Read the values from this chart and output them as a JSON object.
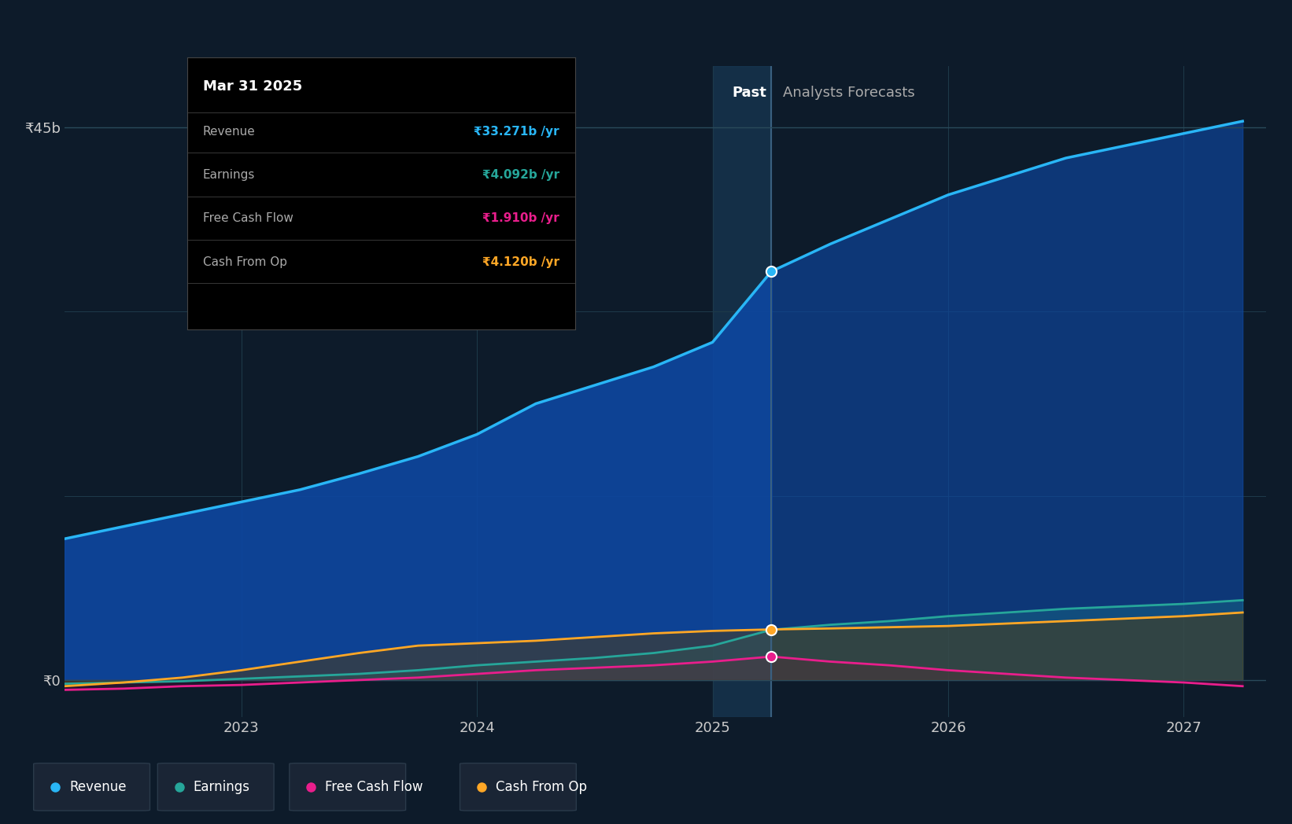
{
  "bg_color": "#0d1b2a",
  "plot_bg_color": "#0d1b2a",
  "grid_color": "#1e3a4a",
  "text_color": "#cccccc",
  "title_color": "#ffffff",
  "ylim": [
    -2,
    50
  ],
  "ytick_labels": [
    "₹0",
    "₹45b"
  ],
  "ytick_values": [
    0,
    45
  ],
  "xlabel_color": "#aaaaaa",
  "divider_x": 2025.25,
  "past_label": "Past",
  "future_label": "Analysts Forecasts",
  "revenue_color": "#29b6f6",
  "earnings_color": "#26a69a",
  "fcf_color": "#e91e8c",
  "cashop_color": "#ffa726",
  "revenue_fill_color": "#0d47a1",
  "revenue_x": [
    2022.25,
    2022.5,
    2022.75,
    2023.0,
    2023.25,
    2023.5,
    2023.75,
    2024.0,
    2024.25,
    2024.5,
    2024.75,
    2025.0,
    2025.25,
    2025.5,
    2025.75,
    2026.0,
    2026.25,
    2026.5,
    2026.75,
    2027.0,
    2027.25
  ],
  "revenue_y": [
    11.5,
    12.5,
    13.5,
    14.5,
    15.5,
    16.8,
    18.2,
    20.0,
    22.5,
    24.0,
    25.5,
    27.5,
    33.271,
    35.5,
    37.5,
    39.5,
    41.0,
    42.5,
    43.5,
    44.5,
    45.5
  ],
  "earnings_x": [
    2022.25,
    2022.5,
    2022.75,
    2023.0,
    2023.25,
    2023.5,
    2023.75,
    2024.0,
    2024.25,
    2024.5,
    2024.75,
    2025.0,
    2025.25,
    2025.5,
    2025.75,
    2026.0,
    2026.25,
    2026.5,
    2026.75,
    2027.0,
    2027.25
  ],
  "earnings_y": [
    -0.3,
    -0.2,
    -0.1,
    0.1,
    0.3,
    0.5,
    0.8,
    1.2,
    1.5,
    1.8,
    2.2,
    2.8,
    4.092,
    4.5,
    4.8,
    5.2,
    5.5,
    5.8,
    6.0,
    6.2,
    6.5
  ],
  "fcf_x": [
    2022.25,
    2022.5,
    2022.75,
    2023.0,
    2023.25,
    2023.5,
    2023.75,
    2024.0,
    2024.25,
    2024.5,
    2024.75,
    2025.0,
    2025.25,
    2025.5,
    2025.75,
    2026.0,
    2026.25,
    2026.5,
    2026.75,
    2027.0,
    2027.25
  ],
  "fcf_y": [
    -0.8,
    -0.7,
    -0.5,
    -0.4,
    -0.2,
    0.0,
    0.2,
    0.5,
    0.8,
    1.0,
    1.2,
    1.5,
    1.91,
    1.5,
    1.2,
    0.8,
    0.5,
    0.2,
    0.0,
    -0.2,
    -0.5
  ],
  "cashop_x": [
    2022.25,
    2022.5,
    2022.75,
    2023.0,
    2023.25,
    2023.5,
    2023.75,
    2024.0,
    2024.25,
    2024.5,
    2024.75,
    2025.0,
    2025.25,
    2025.5,
    2025.75,
    2026.0,
    2026.25,
    2026.5,
    2026.75,
    2027.0,
    2027.25
  ],
  "cashop_y": [
    -0.5,
    -0.2,
    0.2,
    0.8,
    1.5,
    2.2,
    2.8,
    3.0,
    3.2,
    3.5,
    3.8,
    4.0,
    4.12,
    4.2,
    4.3,
    4.4,
    4.6,
    4.8,
    5.0,
    5.2,
    5.5
  ],
  "tooltip_title": "Mar 31 2025",
  "tooltip_rows": [
    {
      "label": "Revenue",
      "value": "₹33.271b /yr",
      "color": "#29b6f6"
    },
    {
      "label": "Earnings",
      "value": "₹4.092b /yr",
      "color": "#26a69a"
    },
    {
      "label": "Free Cash Flow",
      "value": "₹1.910b /yr",
      "color": "#e91e8c"
    },
    {
      "label": "Cash From Op",
      "value": "₹4.120b /yr",
      "color": "#ffa726"
    }
  ],
  "legend_items": [
    {
      "label": "Revenue",
      "color": "#29b6f6"
    },
    {
      "label": "Earnings",
      "color": "#26a69a"
    },
    {
      "label": "Free Cash Flow",
      "color": "#e91e8c"
    },
    {
      "label": "Cash From Op",
      "color": "#ffa726"
    }
  ],
  "xticks": [
    2023,
    2024,
    2025,
    2026,
    2027
  ],
  "xmin": 2022.25,
  "xmax": 2027.35
}
